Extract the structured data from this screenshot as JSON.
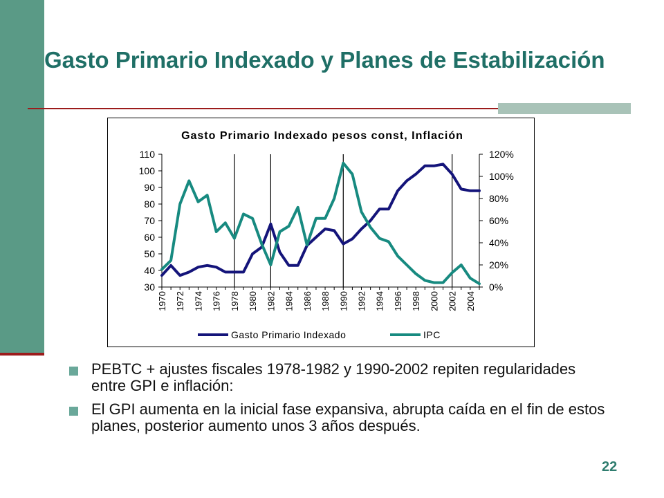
{
  "slide": {
    "title": "Gasto Primario Indexado y Planes de Estabilización",
    "page_number": "22",
    "bullets": [
      "PEBTC + ajustes fiscales 1978-1982 y 1990-2002 repiten regularidades entre GPI e inflación:",
      "El GPI aumenta en la inicial fase expansiva, abrupta caída en el fin de estos planes, posterior aumento unos 3 años después."
    ]
  },
  "colors": {
    "accent_bar": "#5a9a86",
    "title": "#1f6f66",
    "rule": "#9c1c1c",
    "gpi_series": "#14147a",
    "ipc_series": "#178a80"
  },
  "chart_data": {
    "type": "line",
    "title": "Gasto Primario Indexado pesos const, Inflación",
    "x": [
      1970,
      1971,
      1972,
      1973,
      1974,
      1975,
      1976,
      1977,
      1978,
      1979,
      1980,
      1981,
      1982,
      1983,
      1984,
      1985,
      1986,
      1987,
      1988,
      1989,
      1990,
      1991,
      1992,
      1993,
      1994,
      1995,
      1996,
      1997,
      1998,
      1999,
      2000,
      2001,
      2002,
      2003,
      2004,
      2005
    ],
    "x_tick_labels": [
      "1970",
      "1972",
      "1974",
      "1976",
      "1978",
      "1980",
      "1982",
      "1984",
      "1986",
      "1988",
      "1990",
      "1992",
      "1994",
      "1996",
      "1998",
      "2000",
      "2002",
      "2004"
    ],
    "xlim": [
      1970,
      2005
    ],
    "y_left": {
      "ylim": [
        30,
        110
      ],
      "ticks": [
        "30",
        "40",
        "50",
        "60",
        "70",
        "80",
        "90",
        "100",
        "110"
      ]
    },
    "y_right": {
      "ylim": [
        0,
        1.2
      ],
      "ticks": [
        "0%",
        "20%",
        "40%",
        "60%",
        "80%",
        "100%",
        "120%"
      ]
    },
    "vertical_lines": [
      1978,
      1982,
      1990,
      2002
    ],
    "grid": false,
    "legend_position": "bottom",
    "series": [
      {
        "name": "Gasto Primario Indexado",
        "axis": "left",
        "values": [
          37,
          43,
          37,
          39,
          42,
          43,
          42,
          39,
          39,
          39,
          50,
          54,
          68,
          51,
          43,
          43,
          55,
          60,
          65,
          64,
          56,
          59,
          65,
          70,
          77,
          77,
          88,
          94,
          98,
          103,
          103,
          104,
          98,
          89,
          88,
          88
        ]
      },
      {
        "name": "IPC",
        "axis": "right",
        "values": [
          0.16,
          0.24,
          0.75,
          0.96,
          0.77,
          0.83,
          0.5,
          0.58,
          0.44,
          0.66,
          0.62,
          0.39,
          0.2,
          0.5,
          0.55,
          0.72,
          0.38,
          0.62,
          0.62,
          0.8,
          1.12,
          1.02,
          0.68,
          0.54,
          0.44,
          0.41,
          0.28,
          0.2,
          0.12,
          0.06,
          0.04,
          0.04,
          0.13,
          0.2,
          0.08,
          0.03
        ]
      }
    ]
  }
}
